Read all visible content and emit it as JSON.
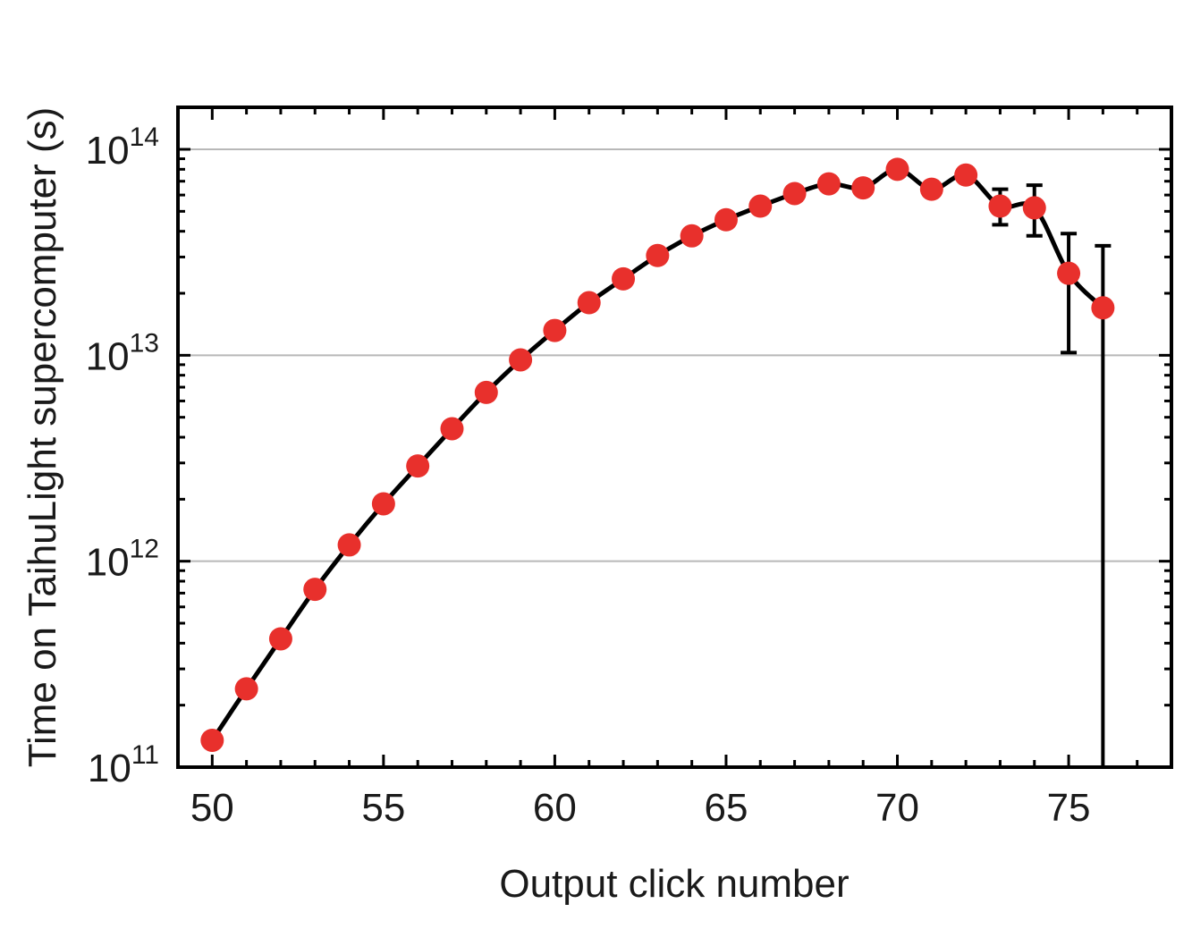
{
  "chart_data": {
    "type": "scatter",
    "xlabel": "Output click number",
    "ylabel": "Time on TaihuLight supercomputer (s)",
    "xlim": [
      49,
      78
    ],
    "ylim": [
      100000000000.0,
      160000000000000.0
    ],
    "y_scale": "log",
    "x_ticks": [
      50,
      55,
      60,
      65,
      70,
      75
    ],
    "y_ticks": [
      {
        "value": 100000000000.0,
        "base": "10",
        "exp": "11"
      },
      {
        "value": 1000000000000.0,
        "base": "10",
        "exp": "12"
      },
      {
        "value": 10000000000000.0,
        "base": "10",
        "exp": "13"
      },
      {
        "value": 100000000000000.0,
        "base": "10",
        "exp": "14"
      }
    ],
    "grid": "horizontal at decades",
    "line_color": "#000000",
    "marker_color": "#e8302c",
    "x": [
      50,
      51,
      52,
      53,
      54,
      55,
      56,
      57,
      58,
      59,
      60,
      61,
      62,
      63,
      64,
      65,
      66,
      67,
      68,
      69,
      70,
      71,
      72,
      73,
      74,
      75,
      76
    ],
    "y": [
      135000000000.0,
      240000000000.0,
      420000000000.0,
      730000000000.0,
      1200000000000.0,
      1900000000000.0,
      2900000000000.0,
      4400000000000.0,
      6600000000000.0,
      9500000000000.0,
      13200000000000.0,
      18000000000000.0,
      23500000000000.0,
      30500000000000.0,
      38000000000000.0,
      45500000000000.0,
      53000000000000.0,
      61000000000000.0,
      68000000000000.0,
      65000000000000.0,
      80000000000000.0,
      64000000000000.0,
      75000000000000.0,
      53000000000000.0,
      52000000000000.0,
      25000000000000.0,
      17000000000000.0
    ],
    "error_bars": [
      {
        "x": 73,
        "low": 43000000000000.0,
        "high": 64000000000000.0
      },
      {
        "x": 74,
        "low": 38000000000000.0,
        "high": 67000000000000.0
      },
      {
        "x": 75,
        "low": 10300000000000.0,
        "high": 39000000000000.0
      },
      {
        "x": 76,
        "low": 100000000000.0,
        "high": 34000000000000.0
      }
    ]
  }
}
